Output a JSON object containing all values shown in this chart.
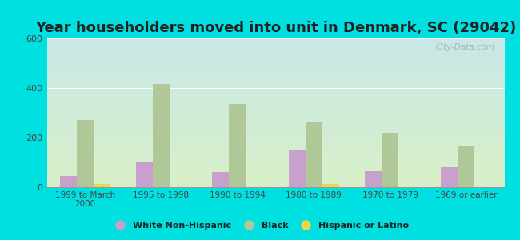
{
  "title": "Year householders moved into unit in Denmark, SC (29042)",
  "categories": [
    "1999 to March\n2000",
    "1995 to 1998",
    "1990 to 1994",
    "1980 to 1989",
    "1970 to 1979",
    "1969 or earlier"
  ],
  "white": [
    45,
    100,
    60,
    150,
    65,
    80
  ],
  "black": [
    270,
    415,
    335,
    265,
    220,
    165
  ],
  "hispanic": [
    12,
    0,
    0,
    12,
    0,
    0
  ],
  "white_color": "#c8a0cc",
  "black_color": "#b0c898",
  "hispanic_color": "#e8d84a",
  "bg_color": "#00e0e0",
  "grad_top": "#c8e8e8",
  "grad_bottom": "#d8f0c8",
  "ylim": [
    0,
    600
  ],
  "yticks": [
    0,
    200,
    400,
    600
  ],
  "bar_width": 0.22,
  "title_fontsize": 13,
  "watermark": "City-Data.com"
}
